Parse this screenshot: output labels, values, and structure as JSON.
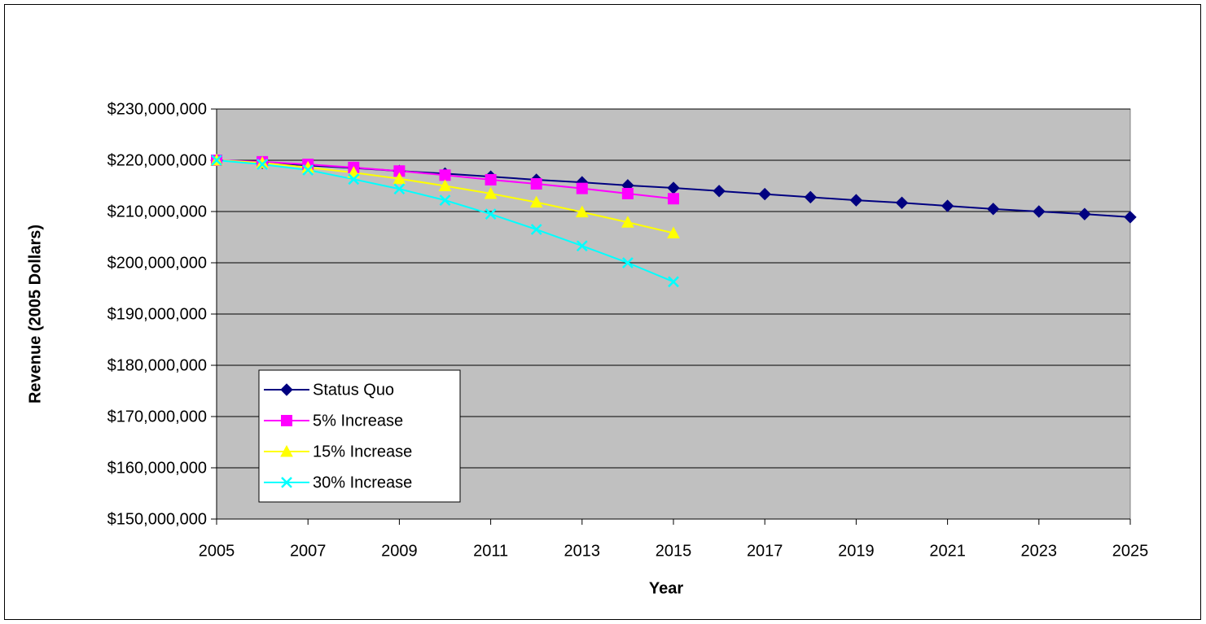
{
  "chart_data": {
    "type": "line",
    "x_label": "Year",
    "y_label": "Revenue (2005 Dollars)",
    "x": [
      2005,
      2006,
      2007,
      2008,
      2009,
      2010,
      2011,
      2012,
      2013,
      2014,
      2015,
      2016,
      2017,
      2018,
      2019,
      2020,
      2021,
      2022,
      2023,
      2024,
      2025
    ],
    "series": [
      {
        "name": "Status Quo",
        "color": "#000080",
        "marker": "diamond",
        "values": [
          220000000,
          219500000,
          219000000,
          218500000,
          217900000,
          217400000,
          216800000,
          216200000,
          215700000,
          215100000,
          214600000,
          214000000,
          213400000,
          212800000,
          212200000,
          211700000,
          211100000,
          210500000,
          210000000,
          209500000,
          208900000
        ]
      },
      {
        "name": "5% Increase",
        "color": "#ff00ff",
        "marker": "square",
        "values": [
          220000000,
          219700000,
          219200000,
          218600000,
          217900000,
          217100000,
          216200000,
          215400000,
          214500000,
          213500000,
          212500000,
          null,
          null,
          null,
          null,
          null,
          null,
          null,
          null,
          null,
          null
        ]
      },
      {
        "name": "15% Increase",
        "color": "#ffff00",
        "marker": "triangle",
        "values": [
          220000000,
          219500000,
          218600000,
          217600000,
          216400000,
          215000000,
          213500000,
          211800000,
          209900000,
          207900000,
          205800000,
          null,
          null,
          null,
          null,
          null,
          null,
          null,
          null,
          null,
          null
        ]
      },
      {
        "name": "30% Increase",
        "color": "#00ffff",
        "marker": "x",
        "values": [
          220000000,
          219200000,
          218100000,
          216300000,
          214400000,
          212200000,
          209500000,
          206500000,
          203300000,
          200000000,
          196300000,
          null,
          null,
          null,
          null,
          null,
          null,
          null,
          null,
          null,
          null
        ]
      }
    ],
    "xlim": [
      2005,
      2025
    ],
    "xticks": [
      2005,
      2007,
      2009,
      2011,
      2013,
      2015,
      2017,
      2019,
      2021,
      2023,
      2025
    ],
    "ylim": [
      150000000,
      230000000
    ],
    "yticks": [
      {
        "value": 150000000,
        "label": "$150,000,000"
      },
      {
        "value": 160000000,
        "label": "$160,000,000"
      },
      {
        "value": 170000000,
        "label": "$170,000,000"
      },
      {
        "value": 180000000,
        "label": "$180,000,000"
      },
      {
        "value": 190000000,
        "label": "$190,000,000"
      },
      {
        "value": 200000000,
        "label": "$200,000,000"
      },
      {
        "value": 210000000,
        "label": "$210,000,000"
      },
      {
        "value": 220000000,
        "label": "$220,000,000"
      },
      {
        "value": 230000000,
        "label": "$230,000,000"
      }
    ],
    "grid": true,
    "plot_background": "#c0c0c0",
    "legend_position": "lower left"
  }
}
